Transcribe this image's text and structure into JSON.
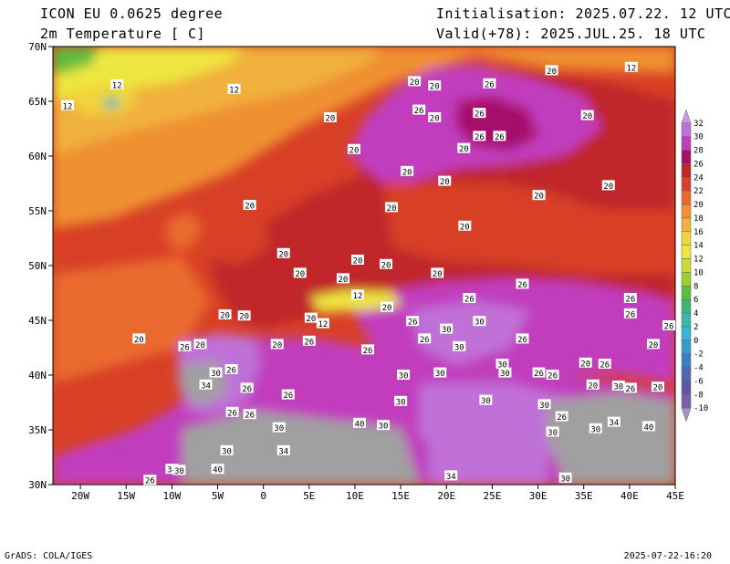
{
  "header": {
    "model": "ICON EU 0.0625 degree",
    "variable": "2m Temperature [ C]",
    "init": "Initialisation: 2025.07.22. 12 UTC",
    "valid": "Valid(+78): 2025.JUL.25. 18 UTC"
  },
  "footer": {
    "left": "GrADS: COLA/IGES",
    "right": "2025-07-22-16:20"
  },
  "map": {
    "lon_range": [
      -23,
      45
    ],
    "lat_range": [
      30,
      70
    ],
    "lon_ticks": [
      {
        "v": -20,
        "label": "20W"
      },
      {
        "v": -15,
        "label": "15W"
      },
      {
        "v": -10,
        "label": "10W"
      },
      {
        "v": -5,
        "label": "5W"
      },
      {
        "v": 0,
        "label": "0"
      },
      {
        "v": 5,
        "label": "5E"
      },
      {
        "v": 10,
        "label": "10E"
      },
      {
        "v": 15,
        "label": "15E"
      },
      {
        "v": 20,
        "label": "20E"
      },
      {
        "v": 25,
        "label": "25E"
      },
      {
        "v": 30,
        "label": "30E"
      },
      {
        "v": 35,
        "label": "35E"
      },
      {
        "v": 40,
        "label": "40E"
      },
      {
        "v": 45,
        "label": "45E"
      }
    ],
    "lat_ticks": [
      {
        "v": 30,
        "label": "30N"
      },
      {
        "v": 35,
        "label": "35N"
      },
      {
        "v": 40,
        "label": "40N"
      },
      {
        "v": 45,
        "label": "45N"
      },
      {
        "v": 50,
        "label": "50N"
      },
      {
        "v": 55,
        "label": "55N"
      },
      {
        "v": 60,
        "label": "60N"
      },
      {
        "v": 65,
        "label": "65N"
      },
      {
        "v": 70,
        "label": "70N"
      }
    ],
    "contour_labels": [
      {
        "lon": 7.3,
        "lat": 63.5,
        "t": "20"
      },
      {
        "lon": 16.5,
        "lat": 66.8,
        "t": "20"
      },
      {
        "lon": 24.7,
        "lat": 66.6,
        "t": "26"
      },
      {
        "lon": 18.7,
        "lat": 66.4,
        "t": "20"
      },
      {
        "lon": 31.5,
        "lat": 67.8,
        "t": "20"
      },
      {
        "lon": 17,
        "lat": 64.2,
        "t": "26"
      },
      {
        "lon": 18.7,
        "lat": 63.5,
        "t": "20"
      },
      {
        "lon": 23.6,
        "lat": 63.9,
        "t": "26"
      },
      {
        "lon": 35.4,
        "lat": 63.7,
        "t": "20"
      },
      {
        "lon": 23.6,
        "lat": 61.8,
        "t": "26"
      },
      {
        "lon": 25.8,
        "lat": 61.8,
        "t": "26"
      },
      {
        "lon": 21.9,
        "lat": 60.7,
        "t": "20"
      },
      {
        "lon": 9.9,
        "lat": 60.6,
        "t": "20"
      },
      {
        "lon": 15.7,
        "lat": 58.6,
        "t": "20"
      },
      {
        "lon": 19.8,
        "lat": 57.7,
        "t": "20"
      },
      {
        "lon": 37.7,
        "lat": 57.3,
        "t": "20"
      },
      {
        "lon": 30.1,
        "lat": 56.4,
        "t": "20"
      },
      {
        "lon": 14,
        "lat": 55.3,
        "t": "20"
      },
      {
        "lon": -1.5,
        "lat": 55.5,
        "t": "20"
      },
      {
        "lon": 22,
        "lat": 53.6,
        "t": "20"
      },
      {
        "lon": 2.2,
        "lat": 51.1,
        "t": "20"
      },
      {
        "lon": 10.3,
        "lat": 50.5,
        "t": "20"
      },
      {
        "lon": 13.4,
        "lat": 50.1,
        "t": "20"
      },
      {
        "lon": 4,
        "lat": 49.3,
        "t": "20"
      },
      {
        "lon": 8.7,
        "lat": 48.8,
        "t": "20"
      },
      {
        "lon": 19,
        "lat": 49.3,
        "t": "20"
      },
      {
        "lon": 28.3,
        "lat": 48.3,
        "t": "26"
      },
      {
        "lon": 10.3,
        "lat": 47.3,
        "t": "12"
      },
      {
        "lon": 13.5,
        "lat": 46.2,
        "t": "20"
      },
      {
        "lon": 22.5,
        "lat": 47,
        "t": "26"
      },
      {
        "lon": 40.1,
        "lat": 47,
        "t": "26"
      },
      {
        "lon": 40.1,
        "lat": 45.6,
        "t": "26"
      },
      {
        "lon": -2.1,
        "lat": 45.4,
        "t": "20"
      },
      {
        "lon": 5.2,
        "lat": 45.2,
        "t": "20"
      },
      {
        "lon": 6.5,
        "lat": 44.7,
        "t": "12"
      },
      {
        "lon": 16.3,
        "lat": 44.9,
        "t": "26"
      },
      {
        "lon": 23.6,
        "lat": 44.9,
        "t": "30"
      },
      {
        "lon": 20,
        "lat": 44.2,
        "t": "30"
      },
      {
        "lon": 44.3,
        "lat": 44.5,
        "t": "26"
      },
      {
        "lon": -13.6,
        "lat": 43.3,
        "t": "20"
      },
      {
        "lon": -8.6,
        "lat": 42.6,
        "t": "26"
      },
      {
        "lon": -6.9,
        "lat": 42.8,
        "t": "20"
      },
      {
        "lon": 1.5,
        "lat": 42.8,
        "t": "20"
      },
      {
        "lon": 5,
        "lat": 43.1,
        "t": "26"
      },
      {
        "lon": 17.6,
        "lat": 43.3,
        "t": "26"
      },
      {
        "lon": 21.4,
        "lat": 42.6,
        "t": "30"
      },
      {
        "lon": 28.3,
        "lat": 43.3,
        "t": "26"
      },
      {
        "lon": 11.4,
        "lat": 42.3,
        "t": "26"
      },
      {
        "lon": 42.6,
        "lat": 42.8,
        "t": "20"
      },
      {
        "lon": -5.2,
        "lat": 40.2,
        "t": "30"
      },
      {
        "lon": -3.5,
        "lat": 40.5,
        "t": "26"
      },
      {
        "lon": -6.3,
        "lat": 39.1,
        "t": "34"
      },
      {
        "lon": -1.8,
        "lat": 38.8,
        "t": "26"
      },
      {
        "lon": 2.7,
        "lat": 38.2,
        "t": "26"
      },
      {
        "lon": 15.3,
        "lat": 40,
        "t": "30"
      },
      {
        "lon": 19.3,
        "lat": 40.2,
        "t": "30"
      },
      {
        "lon": 26.1,
        "lat": 41,
        "t": "30"
      },
      {
        "lon": 26.4,
        "lat": 40.2,
        "t": "30"
      },
      {
        "lon": 30.1,
        "lat": 40.2,
        "t": "26"
      },
      {
        "lon": 31.6,
        "lat": 40,
        "t": "26"
      },
      {
        "lon": 35.2,
        "lat": 41.1,
        "t": "20"
      },
      {
        "lon": 37.3,
        "lat": 41,
        "t": "26"
      },
      {
        "lon": 36,
        "lat": 39.1,
        "t": "20"
      },
      {
        "lon": 38.8,
        "lat": 39,
        "t": "30"
      },
      {
        "lon": 40.1,
        "lat": 38.8,
        "t": "26"
      },
      {
        "lon": 43.1,
        "lat": 38.9,
        "t": "20"
      },
      {
        "lon": 15,
        "lat": 37.6,
        "t": "30"
      },
      {
        "lon": 24.3,
        "lat": 37.7,
        "t": "30"
      },
      {
        "lon": 30.7,
        "lat": 37.3,
        "t": "30"
      },
      {
        "lon": -3.4,
        "lat": 36.6,
        "t": "26"
      },
      {
        "lon": -1.5,
        "lat": 36.4,
        "t": "26"
      },
      {
        "lon": 1.7,
        "lat": 35.2,
        "t": "30"
      },
      {
        "lon": 10.5,
        "lat": 35.6,
        "t": "40"
      },
      {
        "lon": 13.1,
        "lat": 35.4,
        "t": "30"
      },
      {
        "lon": 32.6,
        "lat": 36.2,
        "t": "26"
      },
      {
        "lon": 31.6,
        "lat": 34.8,
        "t": "30"
      },
      {
        "lon": 36.3,
        "lat": 35.1,
        "t": "30"
      },
      {
        "lon": 38.3,
        "lat": 35.7,
        "t": "34"
      },
      {
        "lon": 42.1,
        "lat": 35.3,
        "t": "40"
      },
      {
        "lon": -4,
        "lat": 33.1,
        "t": "30"
      },
      {
        "lon": 2.2,
        "lat": 33.1,
        "t": "34"
      },
      {
        "lon": -5,
        "lat": 31.4,
        "t": "40"
      },
      {
        "lon": -10,
        "lat": 31.4,
        "t": "34"
      },
      {
        "lon": -9.2,
        "lat": 31.3,
        "t": "30"
      },
      {
        "lon": -12.4,
        "lat": 30.4,
        "t": "26"
      },
      {
        "lon": 20.5,
        "lat": 30.8,
        "t": "34"
      },
      {
        "lon": 33,
        "lat": 30.6,
        "t": "30"
      },
      {
        "lon": -16,
        "lat": 66.5,
        "t": "12"
      },
      {
        "lon": -3.2,
        "lat": 66.1,
        "t": "12"
      },
      {
        "lon": -21.4,
        "lat": 64.6,
        "t": "12"
      },
      {
        "lon": 40.2,
        "lat": 68.1,
        "t": "12"
      },
      {
        "lon": -4.2,
        "lat": 45.5,
        "t": "20"
      }
    ]
  },
  "colorbar": {
    "levels": [
      "32",
      "30",
      "28",
      "26",
      "24",
      "22",
      "20",
      "18",
      "16",
      "14",
      "12",
      "10",
      "8",
      "6",
      "4",
      "2",
      "0",
      "-2",
      "-4",
      "-6",
      "-8",
      "-10"
    ],
    "colors": [
      "#ca9be0",
      "#c071d8",
      "#c13dbe",
      "#a70e6a",
      "#c0262b",
      "#d84026",
      "#ea6a2e",
      "#ef9033",
      "#f1b13c",
      "#f1d43b",
      "#eee63f",
      "#cadc33",
      "#9ccf36",
      "#5fbd3d",
      "#3fb575",
      "#3bb7ae",
      "#35b4d4",
      "#3a98cb",
      "#3a7ec2",
      "#4d68b5",
      "#5c55a8",
      "#7a5fa9",
      "#a491c9"
    ]
  },
  "colors": {
    "sea_west": "#d84026",
    "sea_north": "#ef9033",
    "land": "#c0262b",
    "hot": "#c13dbe",
    "very_hot": "#c071d8",
    "desert": "#a0a0a0"
  }
}
